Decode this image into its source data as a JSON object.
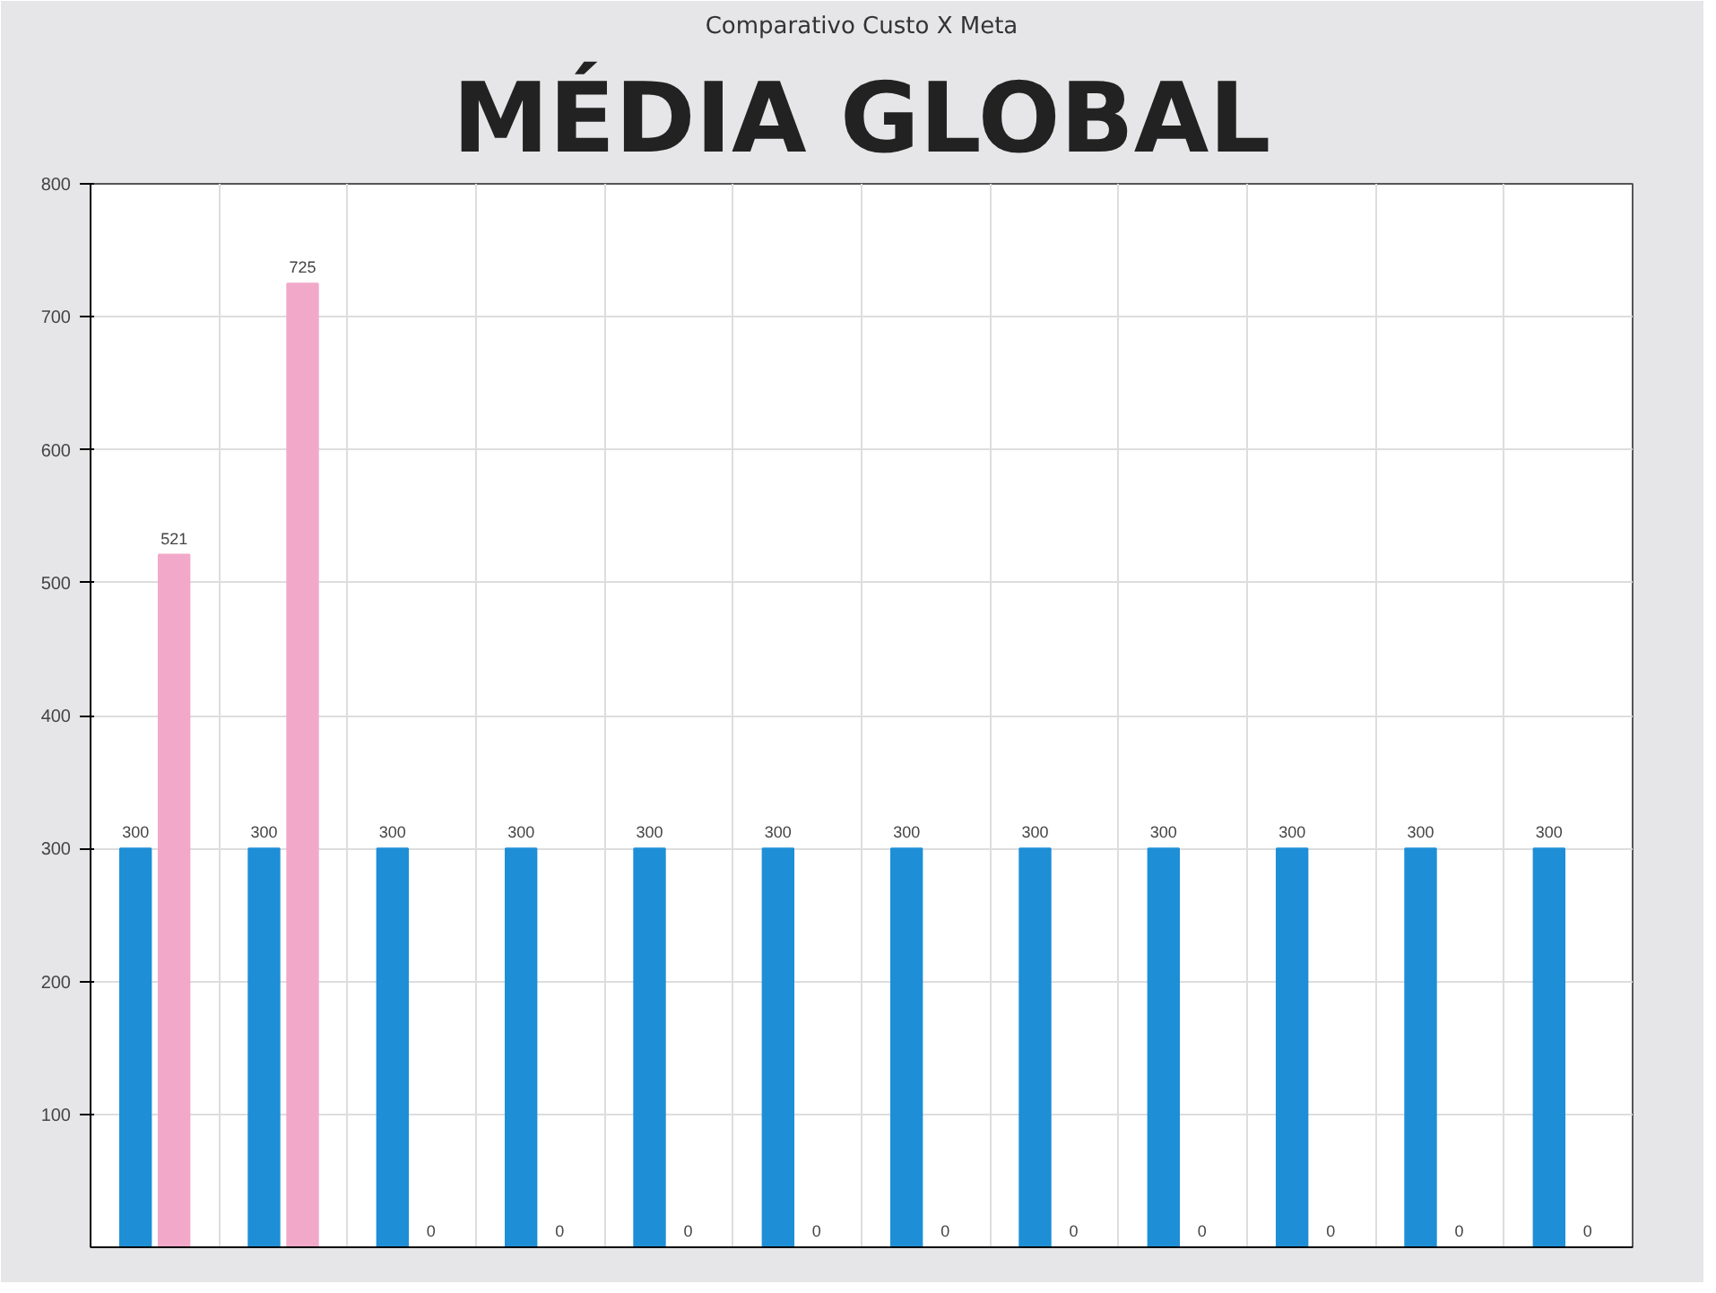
{
  "chart_data": {
    "type": "bar",
    "title": "MÉDIA GLOBAL",
    "subtitle": "Comparativo Custo X Meta",
    "categories": [
      null,
      null,
      null,
      null,
      null,
      null,
      null,
      null,
      null,
      null,
      null,
      null
    ],
    "series": [
      {
        "color": "#1e8fd6",
        "values": [
          300,
          300,
          300,
          300,
          300,
          300,
          300,
          300,
          300,
          300,
          300,
          300
        ]
      },
      {
        "color": "#f2a9c9",
        "values": [
          521,
          725,
          0,
          0,
          0,
          0,
          0,
          0,
          0,
          0,
          0,
          0
        ]
      }
    ],
    "ylim": [
      0,
      800
    ],
    "yticks": [
      100,
      200,
      300,
      400,
      500,
      600,
      700,
      800
    ],
    "grid": true,
    "data_labels": true,
    "tick_labels": "y"
  }
}
